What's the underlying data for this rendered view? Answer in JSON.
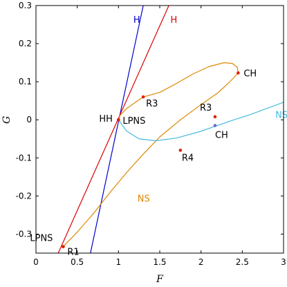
{
  "chart_data": {
    "type": "line",
    "title": "",
    "xlabel": "F",
    "ylabel": "G",
    "xlim": [
      0,
      3
    ],
    "ylim": [
      -0.35,
      0.3
    ],
    "xticks": [
      0,
      0.5,
      1,
      1.5,
      2,
      2.5,
      3
    ],
    "xtick_labels": [
      "0",
      "0.5",
      "1",
      "1.5",
      "2",
      "2.5",
      "3"
    ],
    "yticks": [
      -0.3,
      -0.2,
      -0.1,
      0,
      0.1,
      0.2,
      0.3
    ],
    "ytick_labels": [
      "-0.3",
      "-0.2",
      "-0.1",
      "0",
      "0.1",
      "0.2",
      "0.3"
    ],
    "grid": false,
    "colors": {
      "H_blue": "#0000cc",
      "H_red": "#dd0000",
      "NS_orange": "#dd8800",
      "NS_cyan": "#44bbdd",
      "point_red": "#dd2200",
      "point_blue": "#6666cc"
    },
    "series": [
      {
        "name": "H",
        "color": "#0000cc",
        "kind": "line",
        "x": [
          0.66,
          1.3
        ],
        "y": [
          -0.35,
          0.3
        ]
      },
      {
        "name": "H",
        "color": "#dd0000",
        "kind": "line",
        "x": [
          0.27,
          1.61
        ],
        "y": [
          -0.35,
          0.3
        ]
      },
      {
        "name": "NS",
        "color": "#dd8800",
        "kind": "curve",
        "x": [
          0.33,
          0.5,
          0.7,
          0.9,
          1.1,
          1.3,
          1.5,
          1.75,
          2.0,
          2.2,
          2.35,
          2.45,
          2.44,
          2.38,
          2.28,
          2.1,
          1.9,
          1.7,
          1.5,
          1.3,
          1.1,
          1.02,
          1.0
        ],
        "y": [
          -0.333,
          -0.295,
          -0.245,
          -0.19,
          -0.138,
          -0.09,
          -0.045,
          0.0,
          0.04,
          0.07,
          0.1,
          0.123,
          0.138,
          0.148,
          0.15,
          0.14,
          0.12,
          0.095,
          0.072,
          0.06,
          0.03,
          0.012,
          0.0
        ]
      },
      {
        "name": "NS",
        "color": "#44bbdd",
        "kind": "curve",
        "x": [
          1.0,
          1.1,
          1.25,
          1.45,
          1.7,
          2.0,
          2.2,
          2.4,
          2.6,
          2.8,
          3.0
        ],
        "y": [
          0.0,
          -0.03,
          -0.05,
          -0.055,
          -0.048,
          -0.03,
          -0.015,
          0.0,
          0.014,
          0.03,
          0.046
        ]
      }
    ],
    "points": [
      {
        "x": 0.33,
        "y": -0.333,
        "label": "LPNS",
        "color": "#dd2200"
      },
      {
        "x": 0.33,
        "y": -0.333,
        "label": "R1",
        "color": "#dd2200"
      },
      {
        "x": 1.0,
        "y": 0.0,
        "label": "HH",
        "color": "#dd2200"
      },
      {
        "x": 1.0,
        "y": 0.0,
        "label": "LPNS",
        "color": "#dd2200"
      },
      {
        "x": 1.3,
        "y": 0.06,
        "label": "R3",
        "color": "#dd2200"
      },
      {
        "x": 2.45,
        "y": 0.123,
        "label": "CH",
        "color": "#dd2200"
      },
      {
        "x": 2.17,
        "y": 0.008,
        "label": "R3",
        "color": "#dd2200"
      },
      {
        "x": 2.17,
        "y": -0.015,
        "label": "CH",
        "color": "#6666cc"
      },
      {
        "x": 1.75,
        "y": -0.08,
        "label": "R4",
        "color": "#dd2200"
      }
    ],
    "curve_labels": [
      {
        "text": "H",
        "x": 1.18,
        "y": 0.255,
        "color": "#0000cc"
      },
      {
        "text": "H",
        "x": 1.63,
        "y": 0.255,
        "color": "#dd0000"
      },
      {
        "text": "NS",
        "x": 2.9,
        "y": 0.005,
        "color": "#44bbdd"
      },
      {
        "text": "NS",
        "x": 1.23,
        "y": -0.215,
        "color": "#dd8800"
      }
    ]
  }
}
